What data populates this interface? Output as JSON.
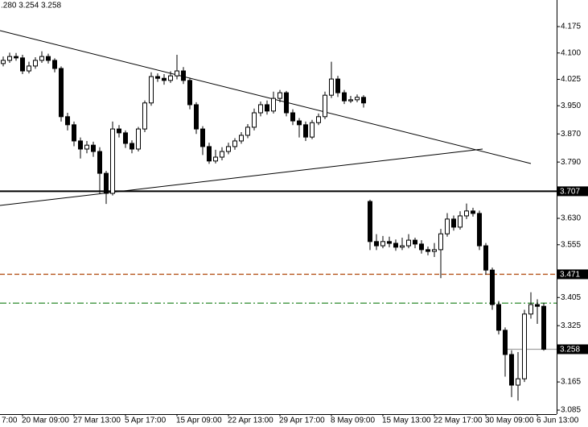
{
  "chart_data": {
    "type": "candlestick",
    "title": ".280 3.254 3.258",
    "x_label_cut": "7:00",
    "categories": [
      null,
      null,
      null,
      "20 Mar 09:00",
      null,
      null,
      null,
      null,
      null,
      null,
      null,
      "27 Mar 13:00",
      null,
      null,
      null,
      null,
      null,
      null,
      null,
      "5 Apr 17:00",
      null,
      null,
      null,
      null,
      null,
      null,
      null,
      "15 Apr 09:00",
      null,
      null,
      null,
      null,
      null,
      null,
      null,
      "22 Apr 13:00",
      null,
      null,
      null,
      null,
      null,
      null,
      null,
      "29 Apr 17:00",
      null,
      null,
      null,
      null,
      null,
      null,
      null,
      "8 May 09:00",
      null,
      null,
      null,
      null,
      null,
      null,
      null,
      "15 May 13:00",
      null,
      null,
      null,
      null,
      null,
      null,
      null,
      "22 May 17:00",
      null,
      null,
      null,
      null,
      null,
      null,
      null,
      "30 May 09:00",
      null,
      null,
      null,
      null,
      null,
      null,
      null,
      "6 Jun 13:00",
      null
    ],
    "open": [
      4.07,
      4.079,
      4.09,
      4.086,
      4.049,
      4.063,
      4.079,
      4.09,
      4.079,
      4.056,
      3.919,
      3.896,
      3.85,
      3.827,
      3.838,
      3.82,
      3.758,
      3.701,
      3.884,
      3.873,
      3.843,
      3.827,
      3.884,
      3.958,
      4.033,
      4.028,
      4.022,
      4.035,
      4.049,
      4.022,
      3.953,
      3.884,
      3.834,
      3.793,
      3.804,
      3.82,
      3.834,
      3.85,
      3.866,
      3.889,
      3.93,
      3.953,
      3.935,
      3.971,
      3.987,
      3.93,
      3.907,
      3.896,
      3.861,
      3.902,
      3.919,
      3.98,
      4.026,
      3.987,
      3.964,
      3.967,
      3.974,
      3.678,
      3.564,
      3.552,
      3.564,
      3.559,
      3.548,
      3.552,
      3.568,
      3.557,
      3.541,
      3.536,
      3.541,
      3.586,
      3.628,
      3.605,
      3.637,
      3.651,
      3.644,
      3.552,
      3.483,
      3.385,
      3.312,
      3.243,
      3.156,
      3.174,
      3.358,
      3.385,
      3.38
    ],
    "high": [
      4.09,
      4.101,
      4.1,
      4.095,
      4.075,
      4.088,
      4.105,
      4.098,
      4.085,
      4.062,
      3.93,
      3.905,
      3.86,
      3.85,
      3.848,
      3.832,
      3.765,
      3.905,
      3.895,
      3.88,
      3.852,
      3.89,
      3.965,
      4.045,
      4.042,
      4.04,
      4.048,
      4.095,
      4.06,
      4.03,
      3.96,
      3.892,
      3.845,
      3.825,
      3.832,
      3.845,
      3.858,
      3.875,
      3.898,
      3.942,
      3.962,
      3.965,
      3.99,
      3.995,
      3.992,
      3.94,
      3.915,
      3.905,
      3.91,
      3.928,
      3.99,
      4.075,
      4.035,
      3.995,
      3.978,
      3.982,
      3.98,
      3.683,
      3.585,
      3.58,
      3.578,
      3.57,
      3.575,
      3.585,
      3.575,
      3.568,
      3.55,
      3.56,
      3.6,
      3.645,
      3.638,
      3.65,
      3.672,
      3.66,
      3.652,
      3.56,
      3.49,
      3.395,
      3.32,
      3.255,
      3.25,
      3.37,
      3.42,
      3.4,
      3.39
    ],
    "low": [
      4.062,
      4.072,
      4.078,
      4.04,
      4.042,
      4.055,
      4.072,
      4.07,
      4.045,
      3.905,
      3.88,
      3.835,
      3.8,
      3.815,
      3.805,
      3.7,
      3.671,
      3.695,
      3.86,
      3.83,
      3.815,
      3.82,
      3.875,
      3.95,
      4.018,
      4.01,
      4.015,
      4.025,
      4.012,
      3.94,
      3.87,
      3.81,
      3.785,
      3.786,
      3.795,
      3.812,
      3.825,
      3.842,
      3.858,
      3.88,
      3.92,
      3.925,
      3.928,
      3.96,
      3.92,
      3.895,
      3.86,
      3.85,
      3.855,
      3.895,
      3.912,
      3.972,
      3.975,
      3.955,
      3.958,
      3.96,
      3.945,
      3.54,
      3.54,
      3.545,
      3.548,
      3.538,
      3.54,
      3.545,
      3.545,
      3.53,
      3.525,
      3.52,
      3.46,
      3.578,
      3.595,
      3.598,
      3.628,
      3.635,
      3.54,
      3.47,
      3.37,
      3.3,
      3.18,
      3.122,
      3.112,
      3.165,
      3.345,
      3.33,
      3.254
    ],
    "close": [
      4.079,
      4.09,
      4.086,
      4.049,
      4.063,
      4.079,
      4.09,
      4.079,
      4.056,
      3.919,
      3.896,
      3.85,
      3.827,
      3.838,
      3.82,
      3.758,
      3.701,
      3.884,
      3.873,
      3.843,
      3.827,
      3.884,
      3.958,
      4.033,
      4.028,
      4.022,
      4.035,
      4.049,
      4.022,
      3.953,
      3.884,
      3.834,
      3.793,
      3.804,
      3.82,
      3.834,
      3.85,
      3.866,
      3.889,
      3.93,
      3.953,
      3.935,
      3.971,
      3.987,
      3.93,
      3.907,
      3.896,
      3.861,
      3.902,
      3.919,
      3.98,
      4.026,
      3.987,
      3.964,
      3.967,
      3.974,
      3.958,
      3.564,
      3.552,
      3.564,
      3.559,
      3.548,
      3.552,
      3.568,
      3.557,
      3.541,
      3.536,
      3.541,
      3.586,
      3.628,
      3.605,
      3.637,
      3.651,
      3.644,
      3.552,
      3.483,
      3.385,
      3.312,
      3.243,
      3.156,
      3.174,
      3.358,
      3.385,
      3.38,
      3.258
    ],
    "up_color": "#ffffff",
    "down_color": "#000000",
    "ylim": [
      3.0736,
      4.2506
    ],
    "yticks": [
      4.175,
      {
        "value": 4.1,
        "label": "4.100"
      },
      4.025,
      {
        "value": 3.95,
        "label": "3.950"
      },
      {
        "value": 3.87,
        "label": "3.870"
      },
      {
        "value": 3.79,
        "label": "3.790"
      },
      {
        "value": 3.63,
        "label": "3.630"
      },
      3.555,
      3.405,
      3.325,
      3.165,
      3.085
    ],
    "hlines": [
      {
        "value": 3.707,
        "color": "#000000",
        "style": "solid",
        "label_box": true
      },
      {
        "value": 3.471,
        "color": "#b5541d",
        "style": "dashed",
        "label_box": true
      },
      {
        "value": 3.389,
        "color": "#2e8b2e",
        "style": "dashdot",
        "label_box": false
      },
      {
        "value": 3.258,
        "color": "#a0a0a0",
        "style": "solid",
        "label_box": true
      }
    ],
    "grid": false
  }
}
